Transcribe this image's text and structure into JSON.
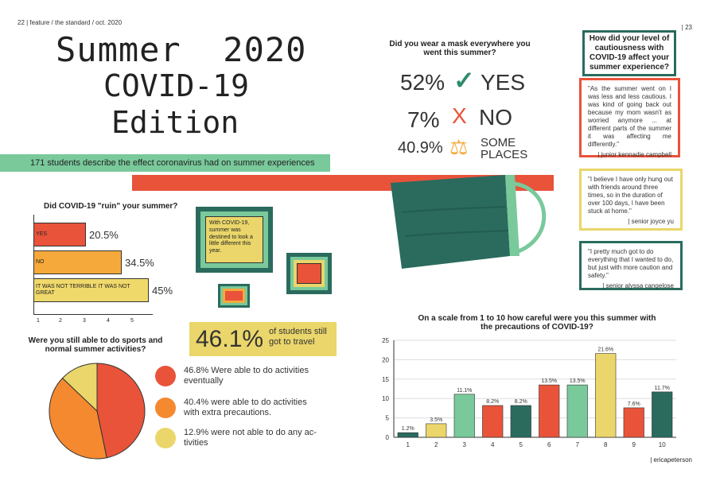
{
  "folio": {
    "left": "22 | feature / the standard / oct. 2020",
    "right": "| 23"
  },
  "title": {
    "line1": "Summer  2020",
    "line2": "COVID-19",
    "line3": "Edition"
  },
  "subtitle": "171 students describe the effect coronavirus had on summer experiences",
  "mask_question": {
    "question": "Did you wear a mask everywhere you went this summer?",
    "items": [
      {
        "pct": "52%",
        "symbol": "✓",
        "label": "YES"
      },
      {
        "pct": "7%",
        "symbol": "X",
        "label": "NO"
      },
      {
        "pct": "40.9%",
        "symbol": "⚖",
        "label": "SOME PLACES"
      }
    ]
  },
  "caution": {
    "question": "How did your level of cautiousness with COVID-19 affect your summer experience?",
    "quotes": [
      {
        "text": "\"As the summer went on I was less and less cautious. I was kind of going back out because my mom wasn't as worried anymore ... at different parts of the summer it was affecting me differently.\"",
        "att": "| junior kennadie campbell"
      },
      {
        "text": "\"I believe I have only hung out with friends around three times, so in the duration of over 100 days, I have been stuck at home.\"",
        "att": "| senior joyce yu"
      },
      {
        "text": "\"I pretty much got to do everything that I wanted to do, but just with more caution and safety.\"",
        "att": "| senior alyssa cangelose"
      }
    ]
  },
  "ruin_chart": {
    "question": "Did COVID-19 \"ruin\" your summer?",
    "xticks": [
      "1",
      "2",
      "3",
      "4",
      "5"
    ],
    "bars": [
      {
        "label": "YES",
        "value": "20.5%",
        "frac": 0.205,
        "color": "#e8533a"
      },
      {
        "label": "NO",
        "value": "34.5%",
        "frac": 0.345,
        "color": "#f6a93b"
      },
      {
        "label": "IT WAS NOT TERRIBLE IT WAS NOT GREAT",
        "value": "45%",
        "frac": 0.45,
        "color": "#f0d96b"
      }
    ]
  },
  "frame_caption": "With COVID-19, summer was destined to look a little different this year.",
  "travel": {
    "pct": "46.1%",
    "text": "of students still got to travel"
  },
  "sports": {
    "question": "Were you still able to do sports and normal summer activities?",
    "slices": [
      {
        "text": "46.8% Were able to do activities eventually",
        "value": 46.8,
        "color": "#e8533a"
      },
      {
        "text": "40.4% were able to do activities with extra precautions.",
        "value": 40.4,
        "color": "#f4892f"
      },
      {
        "text": "12.9% were not able to do any ac-tivities",
        "value": 12.9,
        "color": "#ead66a"
      }
    ]
  },
  "chart_data": {
    "type": "bar",
    "title": "On a scale from 1 to 10 how careful were you this summer with the precautions of COVID-19?",
    "categories": [
      "1",
      "2",
      "3",
      "4",
      "5",
      "6",
      "7",
      "8",
      "9",
      "10"
    ],
    "values": [
      1.2,
      3.5,
      11.1,
      8.2,
      8.2,
      13.5,
      13.5,
      21.6,
      7.6,
      11.7
    ],
    "labels": [
      "1.2%",
      "3.5%",
      "11.1%",
      "8.2%",
      "8.2%",
      "13.5%",
      "13.5%",
      "21.6%",
      "7.6%",
      "11.7%"
    ],
    "colors": [
      "#2a6b5e",
      "#ead66a",
      "#79c99b",
      "#e8533a",
      "#2a6b5e",
      "#e8533a",
      "#79c99b",
      "#ead66a",
      "#e8533a",
      "#2a6b5e"
    ],
    "yticks": [
      "0",
      "5",
      "10",
      "15",
      "20",
      "25"
    ],
    "ylim": [
      0,
      25
    ]
  },
  "byline": "| ericapeterson"
}
